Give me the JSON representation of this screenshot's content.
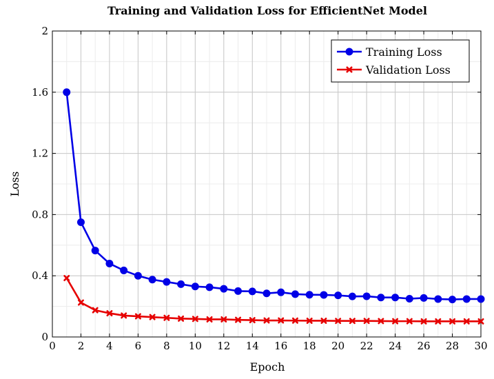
{
  "chart_data": {
    "type": "line",
    "title": "Training and Validation Loss for EfficientNet Model",
    "xlabel": "Epoch",
    "ylabel": "Loss",
    "xlim": [
      0,
      30
    ],
    "ylim": [
      0,
      2
    ],
    "xticks": [
      "0",
      "2",
      "4",
      "6",
      "8",
      "10",
      "12",
      "14",
      "16",
      "18",
      "20",
      "22",
      "24",
      "26",
      "28",
      "30"
    ],
    "yticks": [
      "0",
      "0.4",
      "0.8",
      "1.2",
      "1.6",
      "2"
    ],
    "grid": true,
    "legend_position": "top-right",
    "x": [
      1,
      2,
      3,
      4,
      5,
      6,
      7,
      8,
      9,
      10,
      11,
      12,
      13,
      14,
      15,
      16,
      17,
      18,
      19,
      20,
      21,
      22,
      23,
      24,
      25,
      26,
      27,
      28,
      29,
      30
    ],
    "series": [
      {
        "name": "Training Loss",
        "color": "#0000e6",
        "marker": "circle",
        "values": [
          1.6,
          0.75,
          0.565,
          0.48,
          0.435,
          0.4,
          0.375,
          0.36,
          0.345,
          0.33,
          0.325,
          0.315,
          0.3,
          0.298,
          0.285,
          0.292,
          0.28,
          0.276,
          0.275,
          0.272,
          0.265,
          0.266,
          0.258,
          0.258,
          0.25,
          0.255,
          0.248,
          0.245,
          0.248,
          0.248
        ]
      },
      {
        "name": "Validation Loss",
        "color": "#e60000",
        "marker": "x",
        "values": [
          0.385,
          0.225,
          0.175,
          0.155,
          0.14,
          0.135,
          0.13,
          0.125,
          0.12,
          0.118,
          0.115,
          0.115,
          0.112,
          0.11,
          0.108,
          0.108,
          0.107,
          0.106,
          0.106,
          0.105,
          0.105,
          0.105,
          0.104,
          0.103,
          0.103,
          0.102,
          0.102,
          0.102,
          0.102,
          0.102
        ]
      }
    ]
  }
}
